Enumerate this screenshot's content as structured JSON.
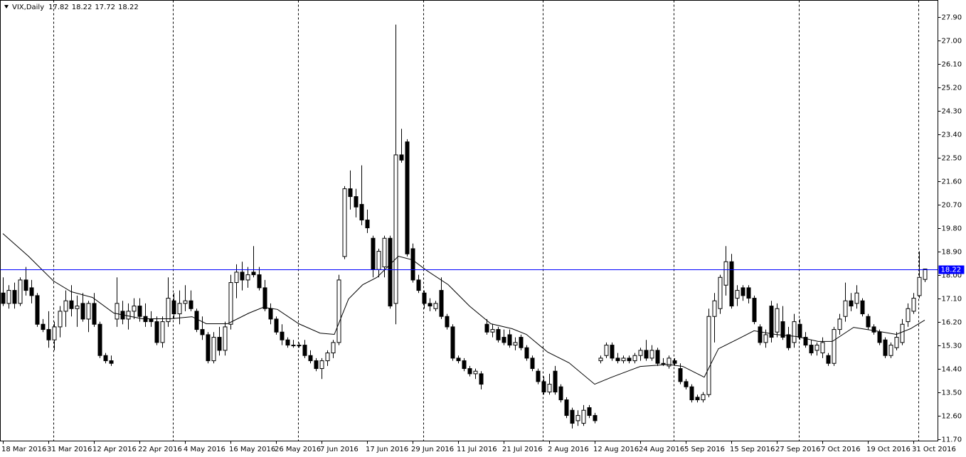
{
  "chart_data": {
    "type": "candlestick",
    "title": "VIX,Daily",
    "ylim": [
      11.62,
      28.53
    ],
    "yticks": [
      {
        "value": 27.9,
        "label": "27.90"
      },
      {
        "value": 27.0,
        "label": "27.00"
      },
      {
        "value": 26.1,
        "label": "26.10"
      },
      {
        "value": 25.2,
        "label": "25.20"
      },
      {
        "value": 24.3,
        "label": "24.30"
      },
      {
        "value": 23.4,
        "label": "23.40"
      },
      {
        "value": 22.5,
        "label": "22.50"
      },
      {
        "value": 21.6,
        "label": "21.60"
      },
      {
        "value": 20.7,
        "label": "20.70"
      },
      {
        "value": 19.8,
        "label": "19.80"
      },
      {
        "value": 18.9,
        "label": "18.90"
      },
      {
        "value": 18.0,
        "label": "18.00"
      },
      {
        "value": 17.1,
        "label": "17.10"
      },
      {
        "value": 16.2,
        "label": "16.20"
      },
      {
        "value": 15.3,
        "label": "15.30"
      },
      {
        "value": 14.4,
        "label": "14.40"
      },
      {
        "value": 13.5,
        "label": "13.50"
      },
      {
        "value": 12.6,
        "label": "12.60"
      },
      {
        "value": 11.7,
        "label": "11.70"
      }
    ],
    "current_price": 18.22,
    "current_color": "#0000ff",
    "up_color": "#ffffff",
    "down_color": "#000000",
    "categories": [
      "18 Mar 2016",
      null,
      null,
      null,
      null,
      null,
      null,
      null,
      "31 Mar 2016",
      null,
      null,
      null,
      null,
      null,
      null,
      null,
      "12 Apr 2016",
      null,
      null,
      null,
      null,
      null,
      null,
      null,
      "22 Apr 2016",
      null,
      null,
      null,
      null,
      null,
      null,
      null,
      "4 May 2016",
      null,
      null,
      null,
      null,
      null,
      null,
      null,
      "16 May 2016",
      null,
      null,
      null,
      null,
      null,
      null,
      null,
      "26 May 2016",
      null,
      null,
      null,
      null,
      null,
      null,
      null,
      "7 Jun 2016",
      null,
      null,
      null,
      null,
      null,
      null,
      null,
      "17 Jun 2016",
      null,
      null,
      null,
      null,
      null,
      null,
      null,
      "29 Jun 2016",
      null,
      null,
      null,
      null,
      null,
      null,
      null,
      "11 Jul 2016",
      null,
      null,
      null,
      null,
      null,
      null,
      null,
      "21 Jul 2016",
      null,
      null,
      null,
      null,
      null,
      null,
      null,
      "2 Aug 2016",
      null,
      null,
      null,
      null,
      null,
      null,
      null,
      "12 Aug 2016",
      null,
      null,
      null,
      null,
      null,
      null,
      null,
      "24 Aug 2016",
      null,
      null,
      null,
      null,
      null,
      null,
      null,
      "5 Sep 2016",
      null,
      null,
      null,
      null,
      null,
      null,
      null,
      "15 Sep 2016",
      null,
      null,
      null,
      null,
      null,
      null,
      null,
      "27 Sep 2016",
      null,
      null,
      null,
      null,
      null,
      null,
      null,
      "7 Oct 2016",
      null,
      null,
      null,
      null,
      null,
      null,
      null,
      "19 Oct 2016",
      null,
      null,
      null,
      null,
      null,
      null,
      null,
      "31 Oct 2016",
      null,
      null
    ],
    "candles": [
      [
        17.3,
        17.9,
        16.8,
        16.9
      ],
      [
        16.9,
        17.6,
        16.7,
        17.4
      ],
      [
        17.4,
        17.7,
        16.7,
        16.9
      ],
      [
        16.9,
        17.9,
        16.8,
        17.8
      ],
      [
        17.8,
        18.3,
        17.2,
        17.4
      ],
      [
        17.5,
        17.8,
        16.9,
        17.2
      ],
      [
        17.2,
        17.3,
        16.0,
        16.1
      ],
      [
        16.1,
        16.3,
        15.8,
        15.9
      ],
      [
        15.9,
        16.6,
        15.2,
        15.5
      ],
      [
        15.5,
        16.2,
        15.1,
        16.0
      ],
      [
        16.0,
        16.8,
        15.6,
        16.6
      ],
      [
        16.6,
        17.4,
        16.0,
        17.0
      ],
      [
        17.0,
        17.6,
        16.4,
        16.7
      ],
      [
        16.7,
        17.2,
        16.0,
        16.8
      ],
      [
        16.9,
        17.3,
        16.2,
        16.3
      ],
      [
        16.3,
        17.0,
        15.8,
        16.9
      ],
      [
        16.9,
        17.3,
        16.0,
        16.1
      ],
      [
        16.1,
        16.2,
        14.8,
        14.9
      ],
      [
        14.9,
        15.0,
        14.6,
        14.7
      ],
      [
        14.7,
        14.9,
        14.5,
        14.6
      ],
      [
        16.3,
        17.9,
        16.0,
        16.9
      ],
      [
        16.6,
        17.0,
        16.1,
        16.3
      ],
      [
        16.3,
        16.9,
        15.9,
        16.6
      ],
      [
        16.6,
        17.1,
        16.3,
        16.8
      ],
      [
        16.8,
        17.1,
        16.2,
        16.4
      ],
      [
        16.4,
        16.9,
        16.0,
        16.2
      ],
      [
        16.3,
        16.6,
        16.0,
        16.2
      ],
      [
        16.2,
        16.4,
        15.3,
        15.4
      ],
      [
        15.4,
        16.4,
        15.2,
        16.2
      ],
      [
        16.2,
        17.9,
        16.0,
        17.1
      ],
      [
        17.0,
        17.3,
        16.3,
        16.5
      ],
      [
        16.5,
        17.4,
        16.1,
        16.9
      ],
      [
        16.9,
        17.6,
        16.6,
        17.0
      ],
      [
        17.0,
        17.4,
        16.6,
        16.7
      ],
      [
        16.6,
        16.7,
        15.8,
        15.9
      ],
      [
        15.9,
        16.4,
        15.5,
        15.7
      ],
      [
        15.7,
        15.8,
        14.6,
        14.7
      ],
      [
        14.7,
        15.8,
        14.6,
        15.6
      ],
      [
        15.6,
        16.0,
        14.9,
        15.1
      ],
      [
        15.1,
        16.2,
        14.9,
        16.0
      ],
      [
        16.1,
        18.0,
        15.9,
        17.7
      ],
      [
        17.7,
        18.4,
        17.1,
        18.1
      ],
      [
        18.1,
        18.5,
        17.4,
        17.8
      ],
      [
        17.8,
        18.3,
        17.5,
        18.0
      ],
      [
        18.1,
        19.1,
        17.9,
        18.0
      ],
      [
        18.0,
        18.3,
        17.4,
        17.5
      ],
      [
        17.5,
        17.8,
        16.6,
        16.7
      ],
      [
        16.7,
        16.9,
        16.1,
        16.3
      ],
      [
        16.3,
        16.4,
        15.7,
        15.8
      ],
      [
        15.8,
        16.1,
        15.3,
        15.5
      ],
      [
        15.5,
        15.6,
        15.2,
        15.3
      ],
      [
        15.3,
        15.5,
        15.2,
        15.3
      ],
      [
        15.3,
        15.4,
        15.2,
        15.3
      ],
      [
        15.3,
        15.5,
        14.8,
        14.9
      ],
      [
        14.9,
        15.1,
        14.6,
        14.7
      ],
      [
        14.7,
        14.8,
        14.3,
        14.4
      ],
      [
        14.4,
        14.8,
        14.0,
        14.7
      ],
      [
        14.7,
        15.1,
        14.5,
        15.0
      ],
      [
        15.0,
        15.5,
        14.8,
        15.4
      ],
      [
        15.4,
        18.0,
        15.3,
        17.8
      ],
      [
        18.7,
        21.4,
        18.6,
        21.3
      ],
      [
        21.3,
        22.0,
        20.5,
        21.0
      ],
      [
        21.0,
        21.3,
        20.2,
        20.6
      ],
      [
        20.7,
        22.2,
        19.9,
        20.1
      ],
      [
        20.1,
        20.5,
        19.6,
        19.8
      ],
      [
        19.4,
        19.5,
        17.9,
        18.2
      ],
      [
        18.2,
        19.0,
        17.9,
        18.9
      ],
      [
        18.3,
        19.5,
        17.9,
        19.4
      ],
      [
        19.4,
        19.5,
        16.7,
        16.8
      ],
      [
        16.9,
        27.6,
        16.1,
        22.6
      ],
      [
        22.6,
        23.6,
        22.3,
        22.4
      ],
      [
        23.1,
        23.2,
        18.7,
        18.8
      ],
      [
        19.0,
        19.2,
        17.7,
        17.8
      ],
      [
        17.8,
        18.0,
        17.3,
        17.4
      ],
      [
        17.3,
        17.4,
        16.7,
        16.9
      ],
      [
        16.9,
        17.1,
        16.6,
        16.8
      ],
      [
        16.7,
        17.0,
        16.6,
        16.9
      ],
      [
        17.4,
        17.9,
        16.3,
        16.4
      ],
      [
        16.4,
        16.5,
        15.9,
        16.0
      ],
      [
        16.0,
        16.1,
        14.7,
        14.8
      ],
      [
        14.8,
        14.9,
        14.6,
        14.7
      ],
      [
        14.7,
        14.8,
        14.3,
        14.4
      ],
      [
        14.4,
        14.5,
        14.1,
        14.2
      ],
      [
        14.2,
        14.4,
        14.0,
        14.3
      ],
      [
        14.2,
        14.3,
        13.6,
        13.8
      ],
      [
        16.1,
        16.3,
        15.7,
        15.8
      ],
      [
        15.8,
        16.1,
        15.6,
        15.9
      ],
      [
        15.9,
        16.0,
        15.4,
        15.5
      ],
      [
        15.6,
        15.9,
        15.3,
        15.4
      ],
      [
        15.7,
        15.9,
        15.2,
        15.3
      ],
      [
        15.3,
        15.6,
        15.1,
        15.4
      ],
      [
        15.6,
        15.7,
        15.1,
        15.2
      ],
      [
        15.2,
        15.3,
        14.7,
        14.8
      ],
      [
        14.8,
        14.9,
        14.3,
        14.4
      ],
      [
        14.3,
        14.4,
        13.8,
        13.9
      ],
      [
        13.9,
        14.1,
        13.4,
        13.5
      ],
      [
        13.5,
        14.2,
        13.4,
        13.8
      ],
      [
        14.3,
        14.5,
        13.4,
        13.5
      ],
      [
        13.7,
        13.8,
        13.1,
        13.2
      ],
      [
        13.2,
        13.3,
        12.5,
        12.6
      ],
      [
        12.8,
        12.9,
        12.1,
        12.3
      ],
      [
        12.4,
        12.8,
        12.2,
        12.6
      ],
      [
        12.3,
        13.0,
        12.2,
        12.8
      ],
      [
        12.9,
        13.0,
        12.5,
        12.6
      ],
      [
        12.6,
        12.7,
        12.3,
        12.4
      ],
      [
        14.7,
        14.9,
        14.6,
        14.8
      ],
      [
        14.9,
        15.4,
        14.8,
        15.3
      ],
      [
        15.3,
        15.4,
        14.7,
        14.8
      ],
      [
        14.8,
        15.0,
        14.6,
        14.7
      ],
      [
        14.7,
        14.9,
        14.6,
        14.8
      ],
      [
        14.8,
        14.9,
        14.6,
        14.7
      ],
      [
        14.7,
        15.0,
        14.6,
        14.9
      ],
      [
        14.9,
        15.2,
        14.7,
        15.1
      ],
      [
        15.1,
        15.5,
        14.7,
        14.8
      ],
      [
        14.8,
        15.3,
        14.7,
        15.1
      ],
      [
        15.1,
        15.2,
        14.5,
        14.6
      ],
      [
        14.6,
        14.8,
        14.5,
        14.6
      ],
      [
        14.5,
        14.9,
        14.4,
        14.8
      ],
      [
        14.7,
        14.8,
        14.5,
        14.6
      ],
      [
        14.4,
        14.6,
        13.8,
        13.9
      ],
      [
        13.9,
        14.0,
        13.6,
        13.7
      ],
      [
        13.7,
        13.8,
        13.1,
        13.2
      ],
      [
        13.3,
        13.4,
        13.1,
        13.2
      ],
      [
        13.2,
        13.5,
        13.1,
        13.4
      ],
      [
        13.4,
        16.7,
        13.3,
        16.4
      ],
      [
        16.4,
        17.3,
        15.4,
        17.0
      ],
      [
        16.7,
        18.0,
        16.5,
        17.9
      ],
      [
        17.6,
        19.1,
        17.2,
        18.5
      ],
      [
        18.5,
        18.8,
        16.7,
        16.8
      ],
      [
        17.1,
        17.6,
        16.8,
        17.4
      ],
      [
        17.5,
        17.6,
        17.0,
        17.2
      ],
      [
        17.5,
        17.6,
        16.9,
        17.1
      ],
      [
        17.1,
        17.2,
        16.1,
        16.2
      ],
      [
        16.0,
        16.1,
        15.3,
        15.4
      ],
      [
        15.4,
        15.9,
        15.2,
        15.7
      ],
      [
        16.8,
        17.0,
        15.4,
        15.6
      ],
      [
        15.8,
        16.9,
        15.6,
        16.7
      ],
      [
        16.2,
        16.8,
        15.5,
        15.6
      ],
      [
        15.7,
        16.0,
        15.1,
        15.2
      ],
      [
        15.4,
        16.5,
        15.2,
        16.2
      ],
      [
        16.1,
        16.3,
        15.5,
        15.6
      ],
      [
        15.6,
        15.8,
        15.2,
        15.3
      ],
      [
        15.3,
        15.5,
        14.9,
        15.0
      ],
      [
        15.1,
        15.4,
        14.9,
        15.3
      ],
      [
        15.0,
        15.6,
        14.8,
        15.4
      ],
      [
        14.9,
        15.0,
        14.5,
        14.6
      ],
      [
        14.6,
        16.0,
        14.5,
        15.9
      ],
      [
        15.9,
        16.5,
        15.7,
        16.3
      ],
      [
        16.4,
        17.7,
        16.2,
        17.0
      ],
      [
        17.0,
        17.3,
        16.6,
        16.8
      ],
      [
        16.9,
        17.6,
        16.7,
        17.3
      ],
      [
        17.0,
        17.1,
        16.4,
        16.5
      ],
      [
        16.4,
        16.5,
        15.9,
        16.0
      ],
      [
        16.0,
        16.1,
        15.7,
        15.8
      ],
      [
        15.8,
        15.9,
        15.3,
        15.4
      ],
      [
        15.5,
        15.6,
        14.8,
        14.9
      ],
      [
        14.9,
        15.4,
        14.8,
        15.3
      ],
      [
        15.2,
        15.8,
        15.1,
        15.6
      ],
      [
        15.4,
        16.3,
        15.3,
        16.1
      ],
      [
        16.2,
        16.9,
        16.0,
        16.7
      ],
      [
        16.6,
        17.3,
        16.5,
        17.1
      ],
      [
        17.2,
        18.9,
        17.1,
        17.9
      ],
      [
        17.82,
        18.22,
        17.72,
        18.22
      ]
    ],
    "ma": {
      "color": "#000000",
      "x": [
        0,
        4.5,
        8.9,
        12,
        15.75,
        19.5,
        24.5,
        29.5,
        33.25,
        35.75,
        39.5,
        43.25,
        45.75,
        48.25,
        52,
        55.75,
        58.25,
        60.75,
        63.25,
        65.75,
        69.5,
        72,
        74.5,
        78.25,
        82,
        85.75,
        89.5,
        92,
        95.75,
        99.5,
        104,
        107,
        112,
        117,
        119.5,
        123.25,
        125.75,
        129.5,
        132,
        135.75,
        139.5,
        143.25,
        145.75,
        149.5,
        153.25,
        157,
        159.5,
        162
      ],
      "values": [
        19.58,
        18.71,
        17.76,
        17.35,
        17.13,
        16.53,
        16.31,
        16.31,
        16.39,
        16.12,
        16.12,
        16.53,
        16.75,
        16.67,
        16.12,
        15.76,
        15.71,
        17.07,
        17.62,
        17.9,
        18.71,
        18.57,
        18.16,
        17.62,
        16.8,
        16.12,
        15.93,
        15.71,
        15.03,
        14.62,
        13.8,
        14.07,
        14.48,
        14.56,
        14.48,
        14.07,
        15.16,
        15.57,
        15.85,
        15.71,
        15.63,
        15.44,
        15.44,
        15.98,
        15.85,
        15.71,
        15.93,
        16.26
      ]
    }
  }
}
